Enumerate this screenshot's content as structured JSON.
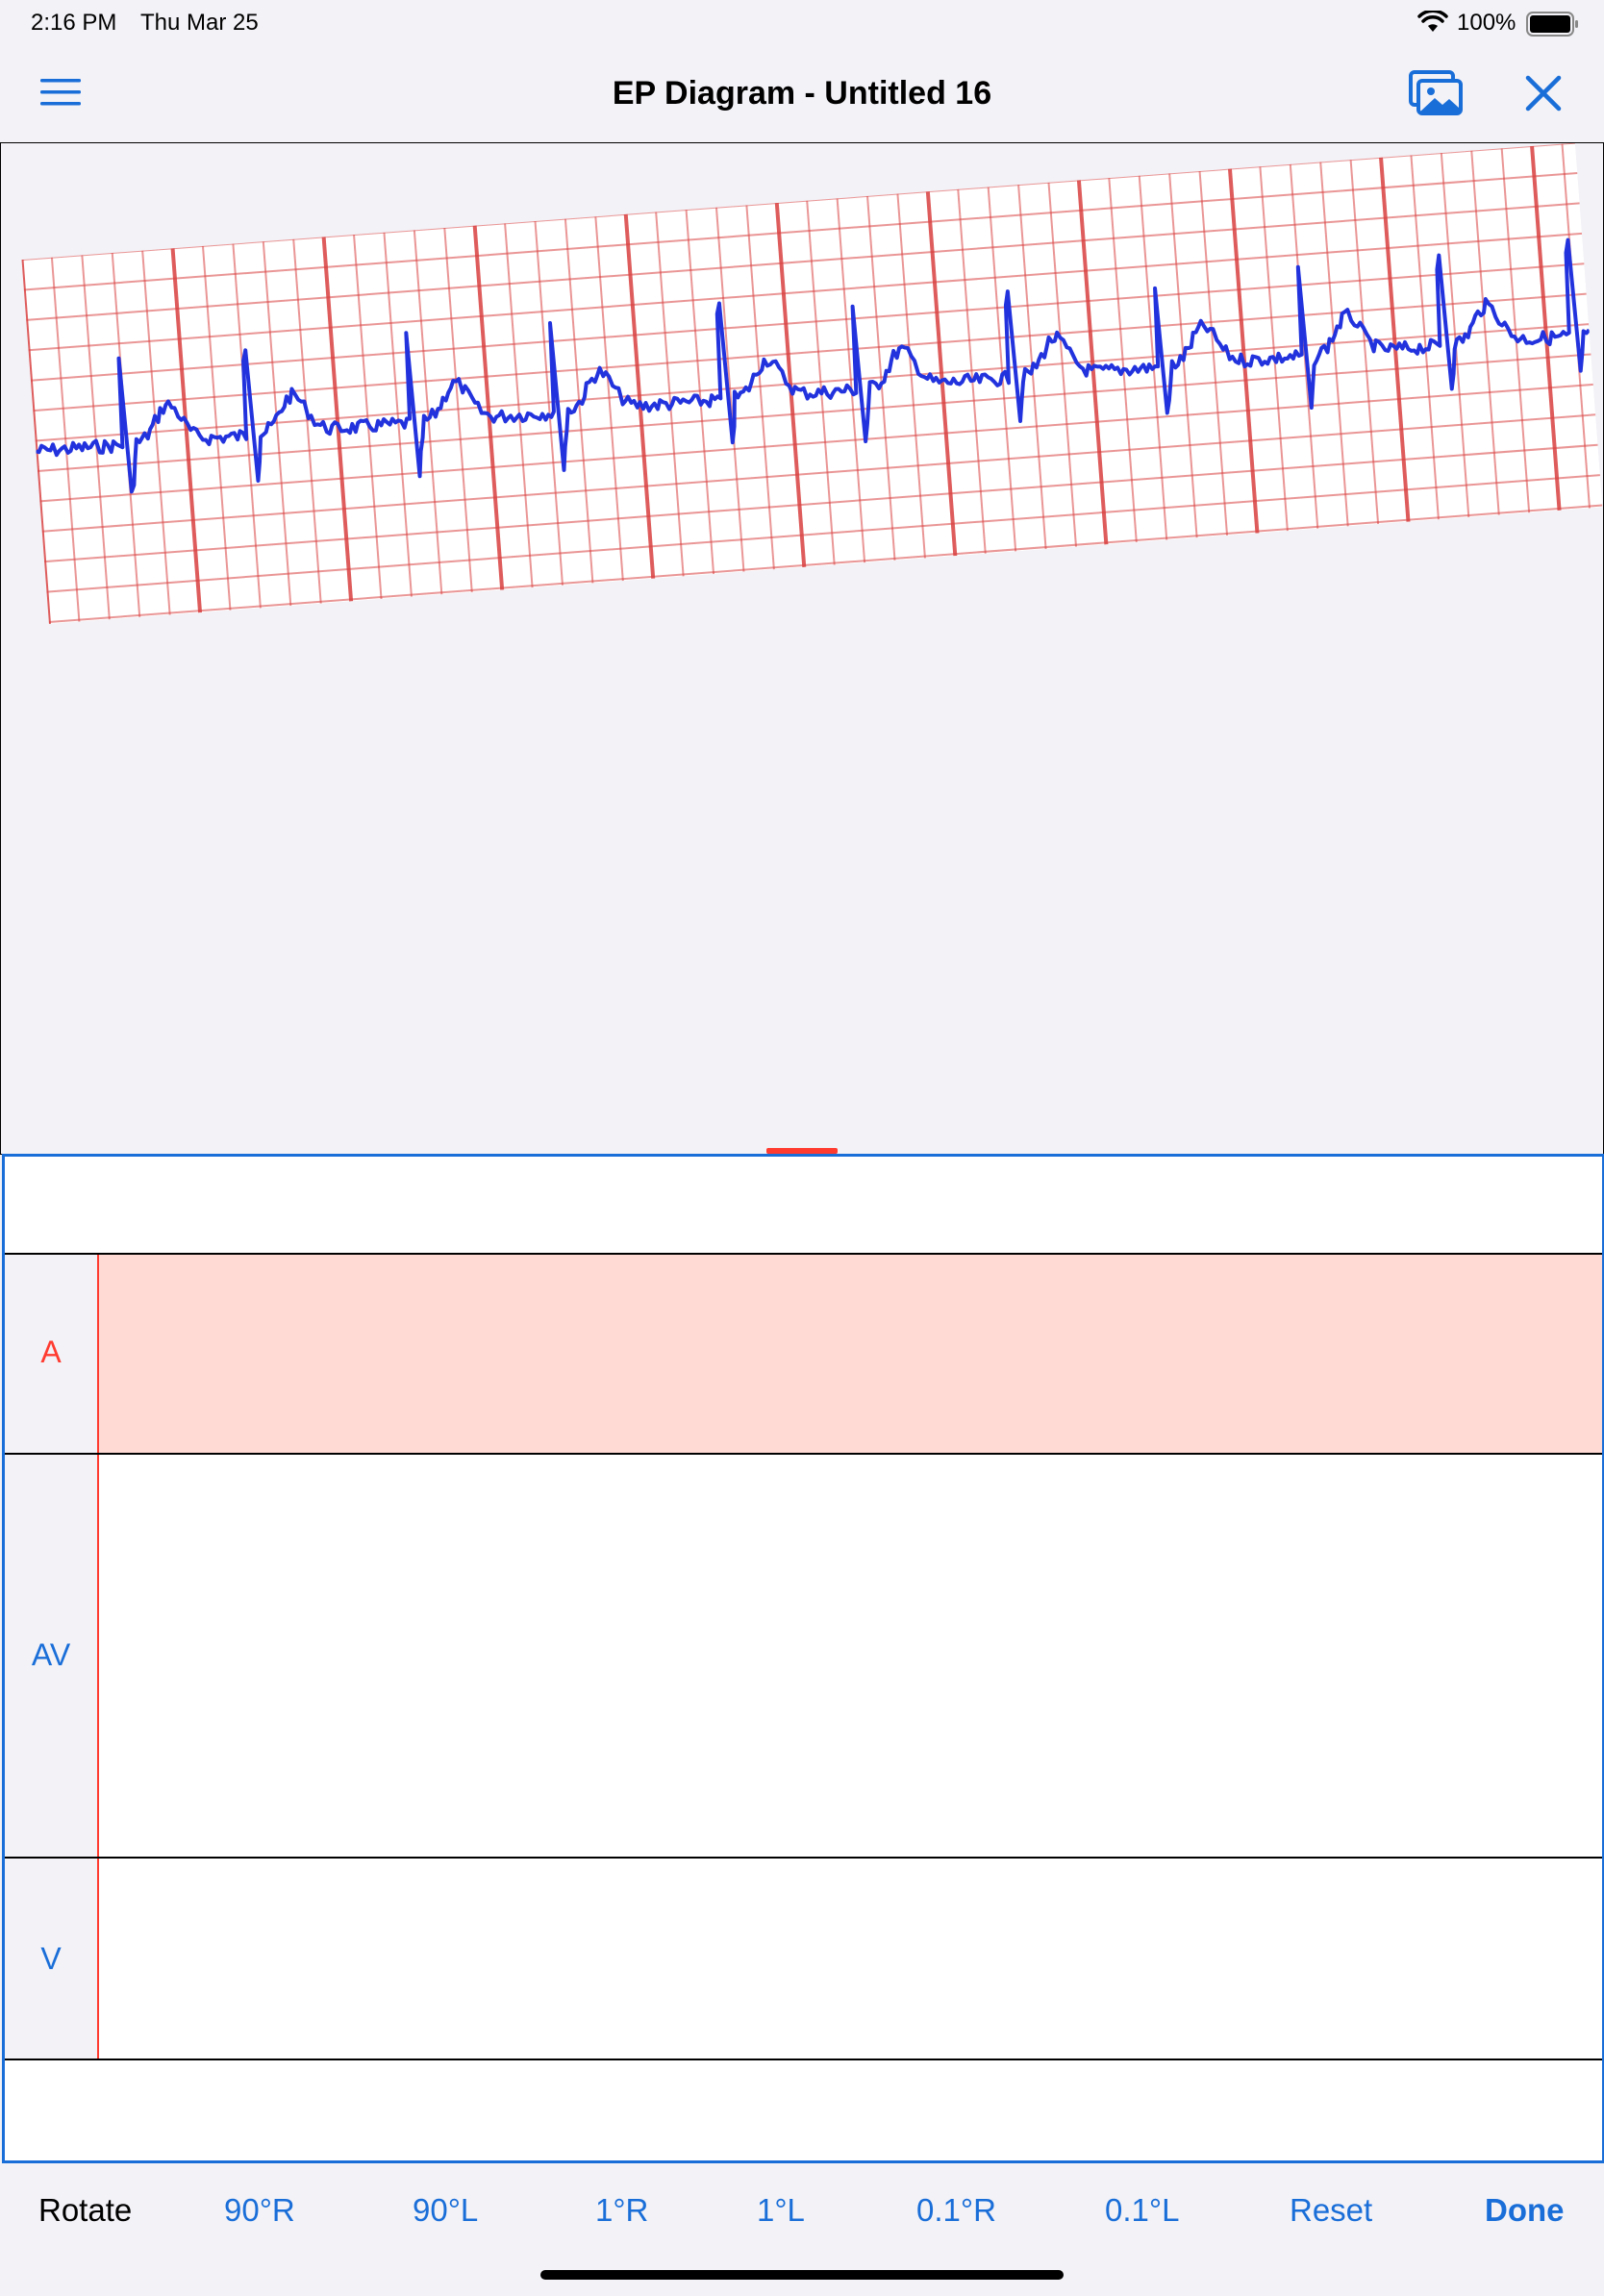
{
  "status_bar": {
    "time": "2:16 PM",
    "date": "Thu Mar 25",
    "battery": "100%"
  },
  "nav": {
    "title": "EP Diagram - Untitled 16",
    "menu_icon": "hamburger-icon",
    "photos_icon": "photo-library-icon",
    "close_icon": "close-icon"
  },
  "colors": {
    "accent": "#1a6ed8",
    "red": "#ff3b30",
    "selected_row": "#ffd9d3",
    "ecg_trace": "#2233dd",
    "ecg_grid": "#d94040"
  },
  "ladder": {
    "rows": [
      {
        "label": "A",
        "selected": true
      },
      {
        "label": "AV",
        "selected": false
      },
      {
        "label": "V",
        "selected": false
      }
    ]
  },
  "toolbar": {
    "label": "Rotate",
    "buttons": [
      "90°R",
      "90°L",
      "1°R",
      "1°L",
      "0.1°R",
      "0.1°L",
      "Reset"
    ],
    "done": "Done"
  }
}
